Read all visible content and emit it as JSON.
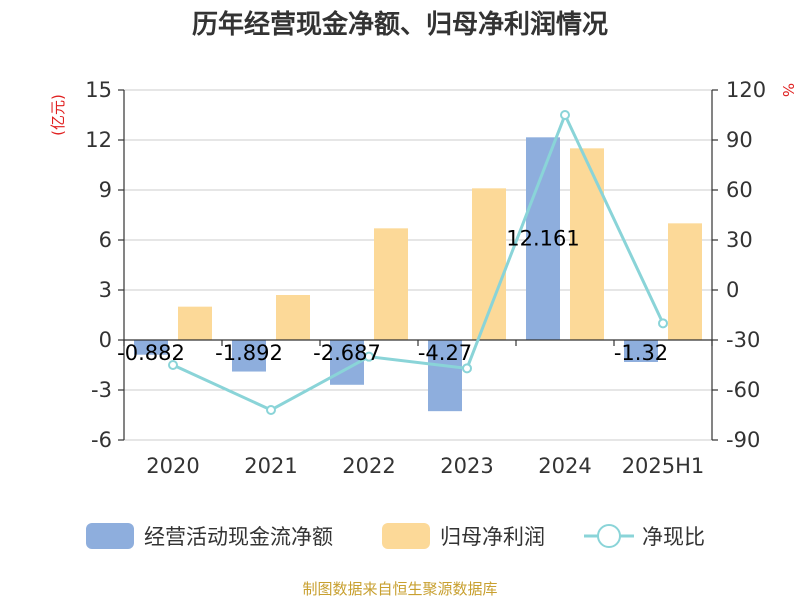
{
  "chart_data": {
    "type": "bar",
    "title": "历年经营现金净额、归母净利润情况",
    "left_unit": "(亿元)",
    "right_unit": "%",
    "categories": [
      "2020",
      "2021",
      "2022",
      "2023",
      "2024",
      "2025H1"
    ],
    "ylim_left": [
      -6,
      15
    ],
    "yticks_left": [
      "-6",
      "-3",
      "0",
      "3",
      "6",
      "9",
      "12",
      "15"
    ],
    "ylim_right": [
      -90,
      120
    ],
    "yticks_right": [
      "-90",
      "-60",
      "-30",
      "0",
      "30",
      "60",
      "90",
      "120"
    ],
    "grid": true,
    "legend_position": "bottom",
    "series": [
      {
        "name": "经营活动现金流净额",
        "type": "bar",
        "axis": "left",
        "color": "#8eaedd",
        "values": [
          -0.882,
          -1.892,
          -2.687,
          -4.27,
          12.161,
          -1.32
        ],
        "labels": [
          "-0.882",
          "-1.892",
          "-2.687",
          "-4.27",
          "12.161",
          "-1.32"
        ]
      },
      {
        "name": "归母净利润",
        "type": "bar",
        "axis": "left",
        "color": "#fcd998",
        "values": [
          2.0,
          2.7,
          6.7,
          9.1,
          11.5,
          7.0
        ]
      },
      {
        "name": "净现比",
        "type": "line",
        "axis": "right",
        "color": "#8ad4d8",
        "values": [
          -45,
          -72,
          -40,
          -47,
          105,
          -20
        ]
      }
    ],
    "source": "制图数据来自恒生聚源数据库"
  }
}
